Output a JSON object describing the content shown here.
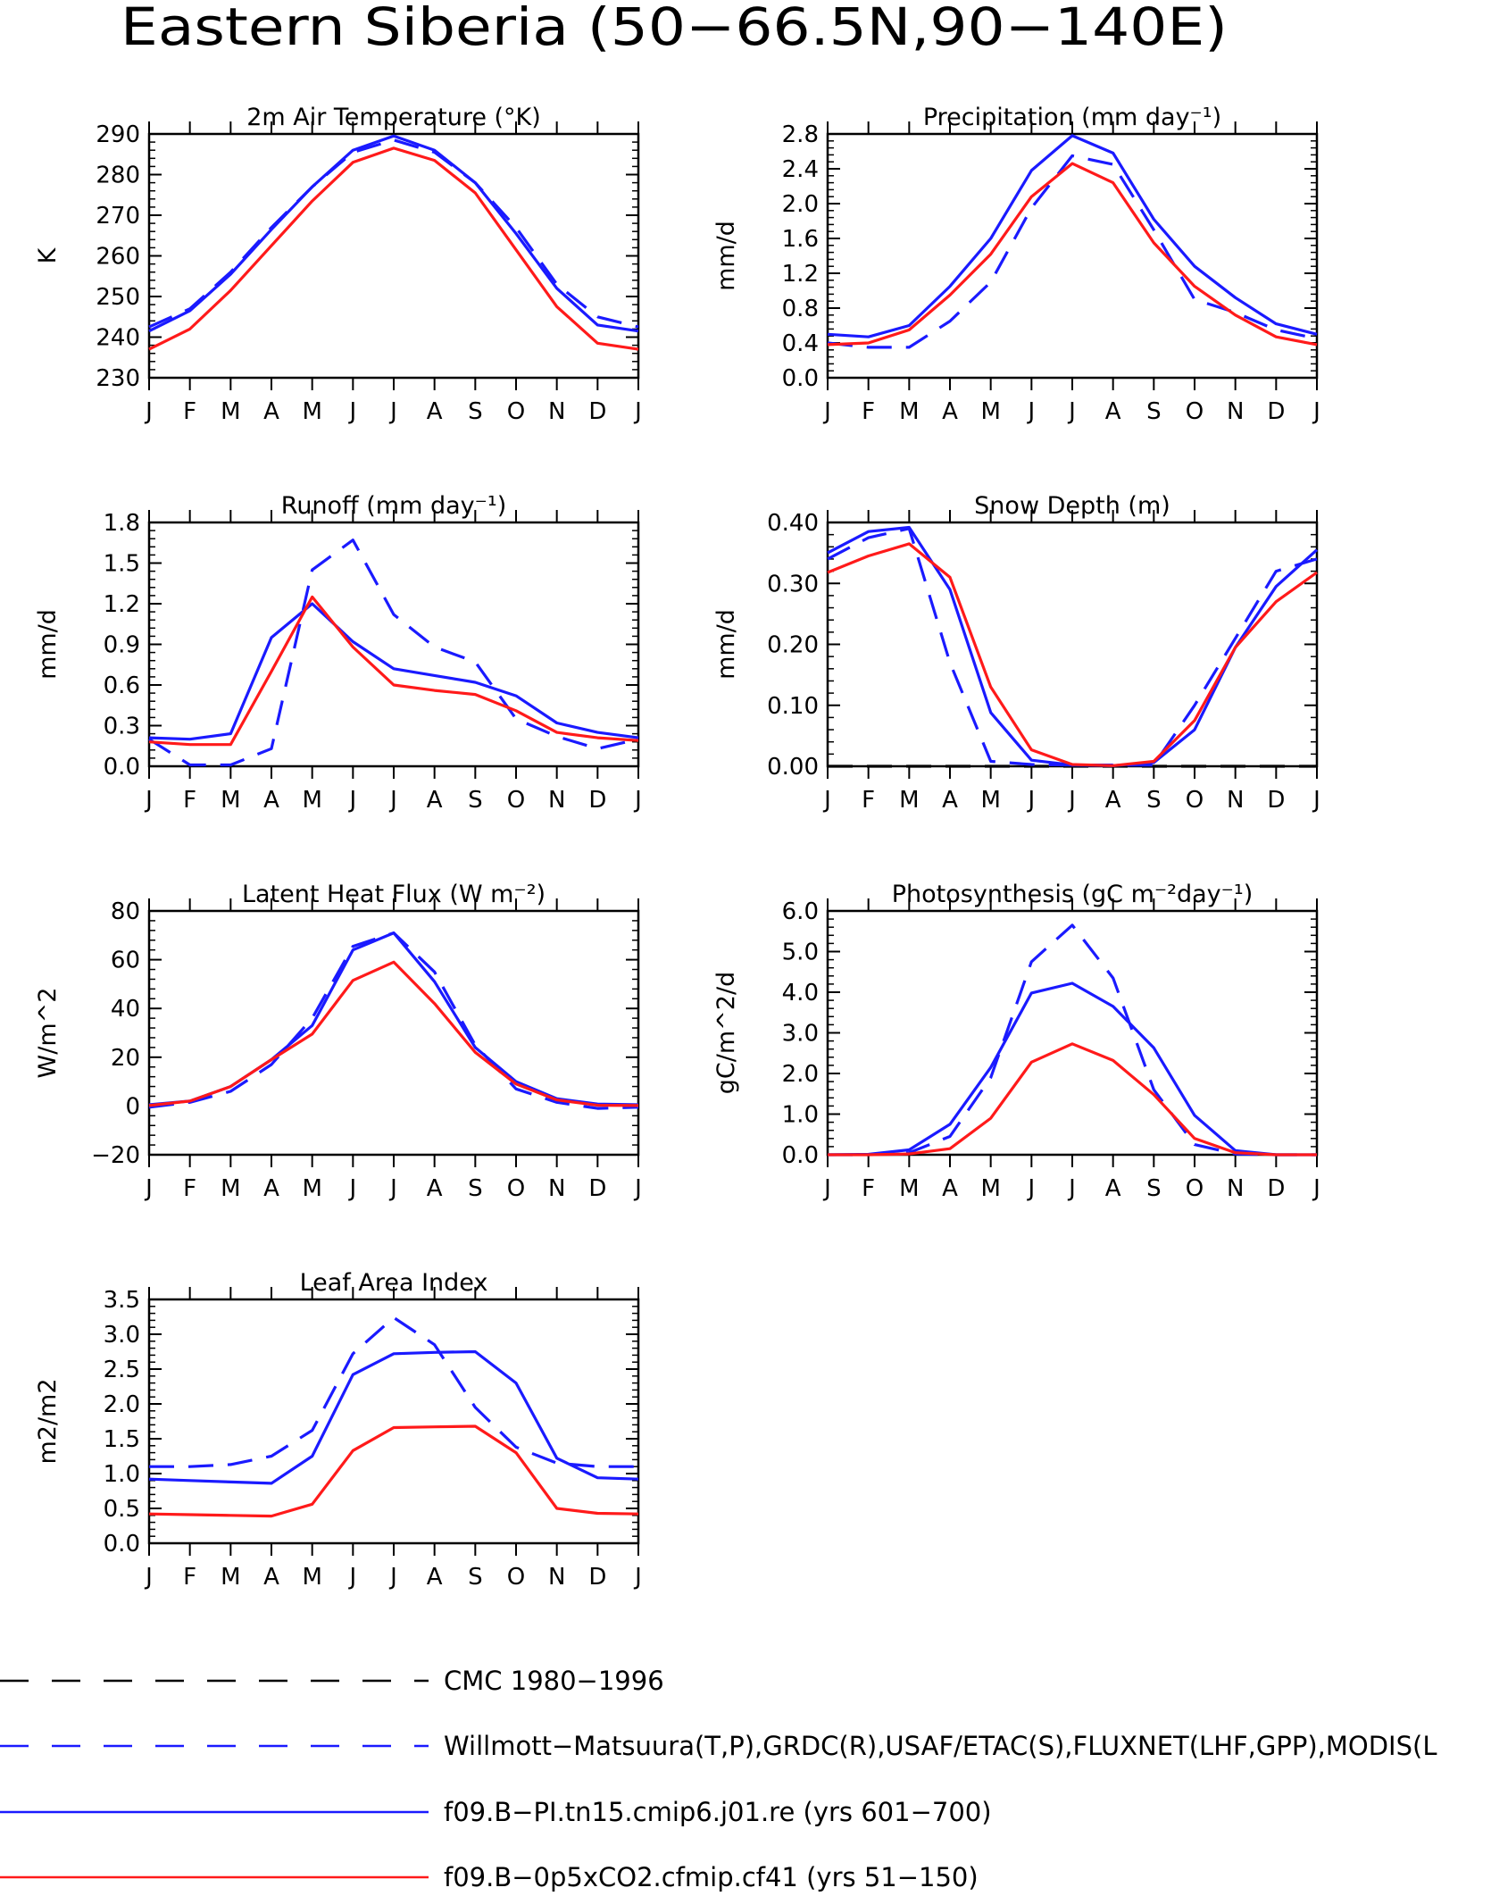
{
  "title": "Eastern Siberia (50−66.5N,90−140E)",
  "colors": {
    "red": "#ff1a1a",
    "blue": "#1a1aff",
    "black": "#000000"
  },
  "months": [
    "J",
    "F",
    "M",
    "A",
    "M",
    "J",
    "J",
    "A",
    "S",
    "O",
    "N",
    "D",
    "J"
  ],
  "legend": [
    {
      "label": "CMC 1980−1996",
      "color": "#000000",
      "style": "dashed"
    },
    {
      "label": "Willmott−Matsuura(T,P),GRDC(R),USAF/ETAC(S),FLUXNET(LHF,GPP),MODIS(L",
      "color": "#1a1aff",
      "style": "dashed"
    },
    {
      "label": "f09.B−PI.tn15.cmip6.j01.re (yrs 601−700)",
      "color": "#1a1aff",
      "style": "solid"
    },
    {
      "label": "f09.B−0p5xCO2.cfmip.cf41 (yrs 51−150)",
      "color": "#ff1a1a",
      "style": "solid"
    }
  ],
  "chart_data": [
    {
      "type": "line",
      "title": "2m Air Temperature (°K)",
      "ylabel": "K",
      "ylim": [
        230,
        290
      ],
      "yticks": [
        "230",
        "240",
        "250",
        "260",
        "270",
        "280",
        "290"
      ],
      "categories": [
        "J",
        "F",
        "M",
        "A",
        "M",
        "J",
        "J",
        "A",
        "S",
        "O",
        "N",
        "D",
        "J"
      ],
      "series": [
        {
          "name": "Willmott−Matsuura(T,P),GRDC(R),USAF/ETAC(S),FLUXNET(LHF,GPP),MODIS(L",
          "style": "dashed",
          "color": "#1a1aff",
          "values": [
            242.5,
            247,
            256,
            267,
            277,
            285.5,
            288.5,
            285.5,
            278,
            267,
            253,
            245,
            242.5
          ]
        },
        {
          "name": "f09.B−PI.tn15.cmip6.j01.re (yrs 601−700)",
          "style": "solid",
          "color": "#1a1aff",
          "values": [
            241.5,
            246.5,
            255.5,
            266.5,
            277,
            286,
            289.5,
            286,
            278,
            265.5,
            252,
            243,
            241.5
          ]
        },
        {
          "name": "f09.B−0p5xCO2.cfmip.cf41 (yrs 51−150)",
          "style": "solid",
          "color": "#ff1a1a",
          "values": [
            237,
            242,
            251.5,
            262.5,
            273.5,
            283,
            286.5,
            283.5,
            275.5,
            261.5,
            247.5,
            238.5,
            237
          ]
        }
      ]
    },
    {
      "type": "line",
      "title": "Precipitation (mm day⁻¹)",
      "ylabel": "mm/d",
      "ylim": [
        0,
        2.8
      ],
      "yticks": [
        "0.0",
        "0.4",
        "0.8",
        "1.2",
        "1.6",
        "2.0",
        "2.4",
        "2.8"
      ],
      "categories": [
        "J",
        "F",
        "M",
        "A",
        "M",
        "J",
        "J",
        "A",
        "S",
        "O",
        "N",
        "D",
        "J"
      ],
      "series": [
        {
          "name": "Willmott−Matsuura(T,P),GRDC(R),USAF/ETAC(S),FLUXNET(LHF,GPP),MODIS(L",
          "style": "dashed",
          "color": "#1a1aff",
          "values": [
            0.4,
            0.35,
            0.35,
            0.65,
            1.1,
            1.95,
            2.55,
            2.45,
            1.7,
            0.9,
            0.75,
            0.55,
            0.45
          ]
        },
        {
          "name": "f09.B−PI.tn15.cmip6.j01.re (yrs 601−700)",
          "style": "solid",
          "color": "#1a1aff",
          "values": [
            0.5,
            0.47,
            0.6,
            1.05,
            1.6,
            2.38,
            2.78,
            2.58,
            1.82,
            1.28,
            0.92,
            0.62,
            0.5
          ]
        },
        {
          "name": "f09.B−0p5xCO2.cfmip.cf41 (yrs 51−150)",
          "style": "solid",
          "color": "#ff1a1a",
          "values": [
            0.38,
            0.4,
            0.55,
            0.95,
            1.42,
            2.08,
            2.46,
            2.24,
            1.55,
            1.05,
            0.72,
            0.47,
            0.38
          ]
        }
      ]
    },
    {
      "type": "line",
      "title": "Runoff (mm day⁻¹)",
      "ylabel": "mm/d",
      "ylim": [
        0,
        1.8
      ],
      "yticks": [
        "0.0",
        "0.3",
        "0.6",
        "0.9",
        "1.2",
        "1.5",
        "1.8"
      ],
      "categories": [
        "J",
        "F",
        "M",
        "A",
        "M",
        "J",
        "J",
        "A",
        "S",
        "O",
        "N",
        "D",
        "J"
      ],
      "series": [
        {
          "name": "Willmott−Matsuura(T,P),GRDC(R),USAF/ETAC(S),FLUXNET(LHF,GPP),MODIS(L",
          "style": "dashed",
          "color": "#1a1aff",
          "values": [
            0.2,
            0.01,
            0.01,
            0.13,
            1.45,
            1.67,
            1.12,
            0.88,
            0.77,
            0.35,
            0.22,
            0.13,
            0.2
          ]
        },
        {
          "name": "f09.B−PI.tn15.cmip6.j01.re (yrs 601−700)",
          "style": "solid",
          "color": "#1a1aff",
          "values": [
            0.21,
            0.2,
            0.24,
            0.95,
            1.2,
            0.92,
            0.72,
            0.67,
            0.62,
            0.52,
            0.32,
            0.25,
            0.21
          ]
        },
        {
          "name": "f09.B−0p5xCO2.cfmip.cf41 (yrs 51−150)",
          "style": "solid",
          "color": "#ff1a1a",
          "values": [
            0.18,
            0.16,
            0.16,
            0.7,
            1.25,
            0.88,
            0.6,
            0.56,
            0.53,
            0.41,
            0.25,
            0.21,
            0.19
          ]
        }
      ]
    },
    {
      "type": "line",
      "title": "Snow Depth (m)",
      "ylabel": "mm/d",
      "ylim": [
        0,
        0.4
      ],
      "yticks": [
        "0.00",
        "0.10",
        "0.20",
        "0.30",
        "0.40"
      ],
      "categories": [
        "J",
        "F",
        "M",
        "A",
        "M",
        "J",
        "J",
        "A",
        "S",
        "O",
        "N",
        "D",
        "J"
      ],
      "series": [
        {
          "name": "CMC 1980−1996",
          "style": "dashed",
          "color": "#000000",
          "values": [
            0,
            0,
            0,
            0,
            0,
            0,
            0,
            0,
            0,
            0,
            0,
            0,
            0
          ]
        },
        {
          "name": "Willmott−Matsuura(T,P),GRDC(R),USAF/ETAC(S),FLUXNET(LHF,GPP),MODIS(L",
          "style": "dashed",
          "color": "#1a1aff",
          "values": [
            0.34,
            0.375,
            0.39,
            0.17,
            0.008,
            0.003,
            0.002,
            0.002,
            0.002,
            0.1,
            0.21,
            0.32,
            0.34
          ]
        },
        {
          "name": "f09.B−PI.tn15.cmip6.j01.re (yrs 601−700)",
          "style": "solid",
          "color": "#1a1aff",
          "values": [
            0.35,
            0.385,
            0.392,
            0.29,
            0.088,
            0.01,
            0.002,
            0.001,
            0.006,
            0.06,
            0.195,
            0.295,
            0.355
          ]
        },
        {
          "name": "f09.B−0p5xCO2.cfmip.cf41 (yrs 51−150)",
          "style": "solid",
          "color": "#ff1a1a",
          "values": [
            0.318,
            0.345,
            0.365,
            0.31,
            0.13,
            0.027,
            0.003,
            0.001,
            0.008,
            0.075,
            0.195,
            0.27,
            0.318
          ]
        }
      ]
    },
    {
      "type": "line",
      "title": "Latent Heat Flux (W m⁻²)",
      "ylabel": "W/m^2",
      "ylim": [
        -20,
        80
      ],
      "yticks": [
        "−20",
        "0",
        "20",
        "40",
        "60",
        "80"
      ],
      "categories": [
        "J",
        "F",
        "M",
        "A",
        "M",
        "J",
        "J",
        "A",
        "S",
        "O",
        "N",
        "D",
        "J"
      ],
      "series": [
        {
          "name": "Willmott−Matsuura(T,P),GRDC(R),USAF/ETAC(S),FLUXNET(LHF,GPP),MODIS(L",
          "style": "dashed",
          "color": "#1a1aff",
          "values": [
            -0.5,
            1.5,
            6,
            17,
            36,
            65.5,
            71,
            55,
            25,
            7,
            1.5,
            -1,
            -0.5
          ]
        },
        {
          "name": "f09.B−PI.tn15.cmip6.j01.re (yrs 601−700)",
          "style": "solid",
          "color": "#1a1aff",
          "values": [
            0.5,
            2,
            8,
            19,
            33,
            64,
            71,
            51,
            24,
            10,
            3,
            0.8,
            0.5
          ]
        },
        {
          "name": "f09.B−0p5xCO2.cfmip.cf41 (yrs 51−150)",
          "style": "solid",
          "color": "#ff1a1a",
          "values": [
            0.2,
            2,
            8,
            19,
            29.5,
            51.5,
            59,
            42,
            22,
            9,
            2.5,
            0.3,
            0.2
          ]
        }
      ]
    },
    {
      "type": "line",
      "title": "Photosynthesis (gC m⁻²day⁻¹)",
      "ylabel": "gC/m^2/d",
      "ylim": [
        0,
        6
      ],
      "yticks": [
        "0.0",
        "1.0",
        "2.0",
        "3.0",
        "4.0",
        "5.0",
        "6.0"
      ],
      "categories": [
        "J",
        "F",
        "M",
        "A",
        "M",
        "J",
        "J",
        "A",
        "S",
        "O",
        "N",
        "D",
        "J"
      ],
      "series": [
        {
          "name": "Willmott−Matsuura(T,P),GRDC(R),USAF/ETAC(S),FLUXNET(LHF,GPP),MODIS(L",
          "style": "dashed",
          "color": "#1a1aff",
          "values": [
            0,
            0,
            0.05,
            0.45,
            1.9,
            4.75,
            5.65,
            4.35,
            1.6,
            0.25,
            0.02,
            0,
            0
          ]
        },
        {
          "name": "f09.B−PI.tn15.cmip6.j01.re (yrs 601−700)",
          "style": "solid",
          "color": "#1a1aff",
          "values": [
            0,
            0.01,
            0.12,
            0.75,
            2.15,
            3.98,
            4.22,
            3.65,
            2.63,
            0.97,
            0.1,
            0,
            0
          ]
        },
        {
          "name": "f09.B−0p5xCO2.cfmip.cf41 (yrs 51−150)",
          "style": "solid",
          "color": "#ff1a1a",
          "values": [
            0,
            0,
            0.02,
            0.15,
            0.9,
            2.28,
            2.73,
            2.32,
            1.48,
            0.4,
            0.05,
            0,
            0
          ]
        }
      ]
    },
    {
      "type": "line",
      "title": "Leaf Area Index",
      "ylabel": "m2/m2",
      "ylim": [
        0,
        3.5
      ],
      "yticks": [
        "0.0",
        "0.5",
        "1.0",
        "1.5",
        "2.0",
        "2.5",
        "3.0",
        "3.5"
      ],
      "categories": [
        "J",
        "F",
        "M",
        "A",
        "M",
        "J",
        "J",
        "A",
        "S",
        "O",
        "N",
        "D",
        "J"
      ],
      "series": [
        {
          "name": "Willmott−Matsuura(T,P),GRDC(R),USAF/ETAC(S),FLUXNET(LHF,GPP),MODIS(L",
          "style": "dashed",
          "color": "#1a1aff",
          "values": [
            1.1,
            1.1,
            1.13,
            1.25,
            1.62,
            2.72,
            3.24,
            2.85,
            1.95,
            1.38,
            1.15,
            1.1,
            1.1
          ]
        },
        {
          "name": "f09.B−PI.tn15.cmip6.j01.re (yrs 601−700)",
          "style": "solid",
          "color": "#1a1aff",
          "values": [
            0.92,
            0.9,
            0.88,
            0.86,
            1.25,
            2.42,
            2.72,
            2.74,
            2.75,
            2.3,
            1.22,
            0.94,
            0.92
          ]
        },
        {
          "name": "f09.B−0p5xCO2.cfmip.cf41 (yrs 51−150)",
          "style": "solid",
          "color": "#ff1a1a",
          "values": [
            0.42,
            0.41,
            0.4,
            0.39,
            0.56,
            1.33,
            1.66,
            1.67,
            1.68,
            1.3,
            0.5,
            0.43,
            0.42
          ]
        }
      ]
    }
  ]
}
